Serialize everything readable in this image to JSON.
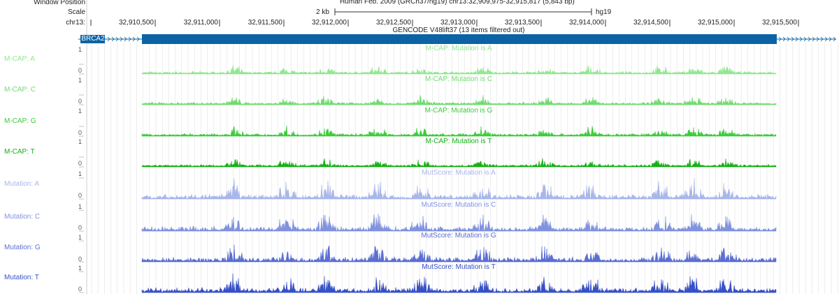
{
  "header": {
    "window_position_label": "Window Position",
    "scale_label": "Scale",
    "chrom_label": "chr13:",
    "assembly_text": "Human Feb. 2009 (GRCh37/hg19)   chr13:32,909,975-32,915,817 (5,843 bp)",
    "scale_bar_label": "2 kb",
    "db_label": "hg19"
  },
  "ruler": {
    "ticks": [
      "32,910,500",
      "32,911,000",
      "32,911,500",
      "32,912,000",
      "32,912,500",
      "32,913,000",
      "32,913,500",
      "32,914,000",
      "32,914,500",
      "32,915,000",
      "32,915,500"
    ]
  },
  "gencode": {
    "title": "GENCODE V48lift37 (13 items filtered out)",
    "gene_name": "BRCA2",
    "color": "#0b63a5"
  },
  "tracks": [
    {
      "label": "M-CAP: A",
      "title": "M-CAP: Mutation is A",
      "color": "#90e890",
      "max": "1",
      "min": "0"
    },
    {
      "label": "M-CAP: C",
      "title": "M-CAP: Mutation is C",
      "color": "#6fdc6f",
      "max": "1",
      "min": "0"
    },
    {
      "label": "M-CAP: G",
      "title": "M-CAP: Mutation is G",
      "color": "#3ccc3c",
      "max": "1",
      "min": "0"
    },
    {
      "label": "M-CAP: T",
      "title": "M-CAP: Mutation is T",
      "color": "#16b016",
      "max": "1",
      "min": "0"
    },
    {
      "label": "Mutation: A",
      "title": "MutScore: Mutation is A",
      "color": "#a8b6ea",
      "max": "1",
      "min": "0"
    },
    {
      "label": "Mutation: C",
      "title": "MutScore: Mutation is C",
      "color": "#8092e0",
      "max": "1",
      "min": "0"
    },
    {
      "label": "Mutation: G",
      "title": "MutScore: Mutation is G",
      "color": "#5a6ed4",
      "max": "1",
      "min": "0"
    },
    {
      "label": "Mutation: T",
      "title": "MutScore: Mutation is T",
      "color": "#3650c6",
      "max": "1",
      "min": "0"
    }
  ]
}
